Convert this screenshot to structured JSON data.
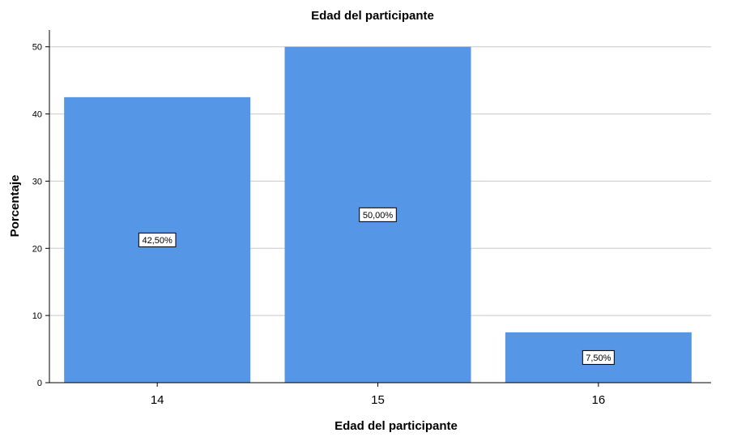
{
  "chart_data": {
    "type": "bar",
    "title": "Edad del participante",
    "xlabel": "Edad del participante",
    "ylabel": "Porcentaje",
    "categories": [
      "14",
      "15",
      "16"
    ],
    "values": [
      42.5,
      50.0,
      7.5
    ],
    "data_labels": [
      "42,50%",
      "50,00%",
      "7,50%"
    ],
    "ylim": [
      0,
      52.5
    ],
    "yticks": [
      0,
      10,
      20,
      30,
      40,
      50
    ],
    "grid": true,
    "bar_color": "#5596e6",
    "grid_color": "#c8c8c8"
  }
}
